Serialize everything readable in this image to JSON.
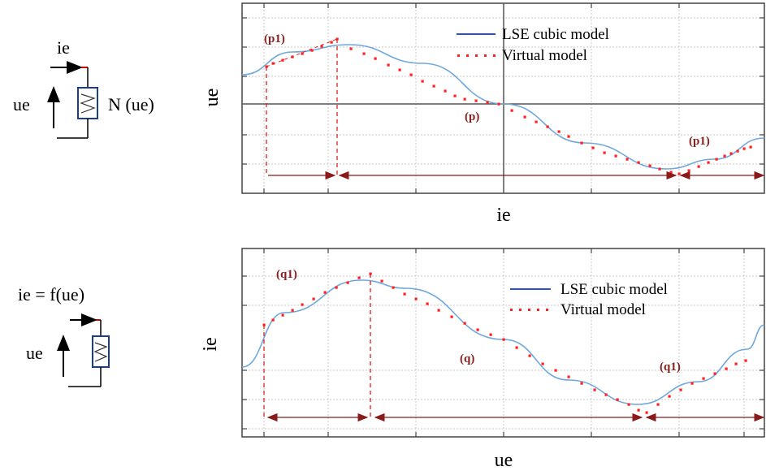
{
  "top": {
    "symbol": {
      "current": "ie",
      "voltage": "ue",
      "element": "N (ue)"
    },
    "ylabel": "ue",
    "xlabel": "ie",
    "legend": [
      "LSE cubic model",
      "Virtual model"
    ],
    "annotations": {
      "left": "(p1)",
      "center": "(p)",
      "right": "(p1)"
    }
  },
  "bottom": {
    "symbol": {
      "equation": "ie = f(ue)",
      "voltage": "ue"
    },
    "ylabel": "ie",
    "xlabel": "ue",
    "legend": [
      "LSE cubic model",
      "Virtual model"
    ],
    "annotations": {
      "left": "(q1)",
      "center": "(q)",
      "right": "(q1)"
    }
  },
  "colors": {
    "curve": "#6fa8dc",
    "dots": "#ff2020",
    "dashes": "#e02020",
    "arrows": "#8b1a1a",
    "axis": "#333333",
    "annot": "#8b2020"
  }
}
